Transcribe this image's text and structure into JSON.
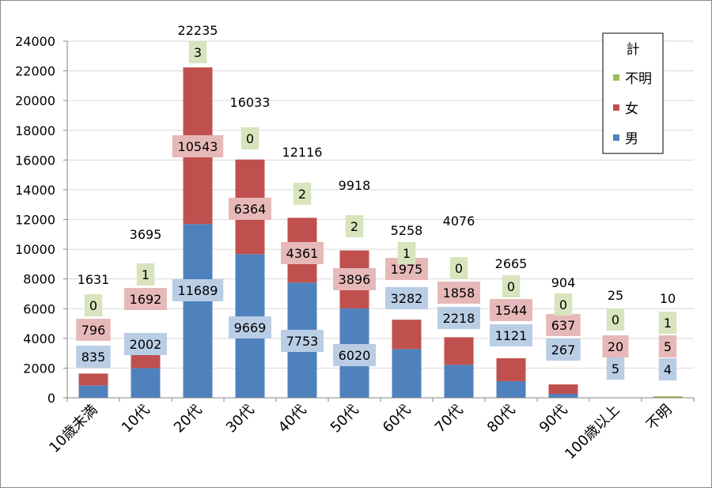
{
  "chart_data": {
    "type": "bar",
    "stacked": true,
    "categories": [
      "10歳未満",
      "10代",
      "20代",
      "30代",
      "40代",
      "50代",
      "60代",
      "70代",
      "80代",
      "90代",
      "100歳以上",
      "不明"
    ],
    "series": [
      {
        "name": "男",
        "color": "#4f81bd",
        "label_bg": "#b9cde5",
        "values": [
          835,
          2002,
          11689,
          9669,
          7753,
          6020,
          3282,
          2218,
          1121,
          267,
          5,
          4
        ]
      },
      {
        "name": "女",
        "color": "#c0504d",
        "label_bg": "#e6b9b8",
        "values": [
          796,
          1692,
          10543,
          6364,
          4361,
          3896,
          1975,
          1858,
          1544,
          637,
          20,
          5
        ]
      },
      {
        "name": "不明",
        "color": "#9bbb59",
        "label_bg": "#d7e4bd",
        "values": [
          0,
          1,
          3,
          0,
          2,
          2,
          1,
          0,
          0,
          0,
          0,
          1
        ]
      }
    ],
    "totals": [
      1631,
      3695,
      22235,
      16033,
      12116,
      9918,
      5258,
      4076,
      2665,
      904,
      25,
      10
    ],
    "ylim": [
      0,
      24000
    ],
    "yticks": [
      0,
      2000,
      4000,
      6000,
      8000,
      10000,
      12000,
      14000,
      16000,
      18000,
      20000,
      22000,
      24000
    ],
    "legend": {
      "title": "計",
      "position": "top-right"
    },
    "grid": true
  }
}
